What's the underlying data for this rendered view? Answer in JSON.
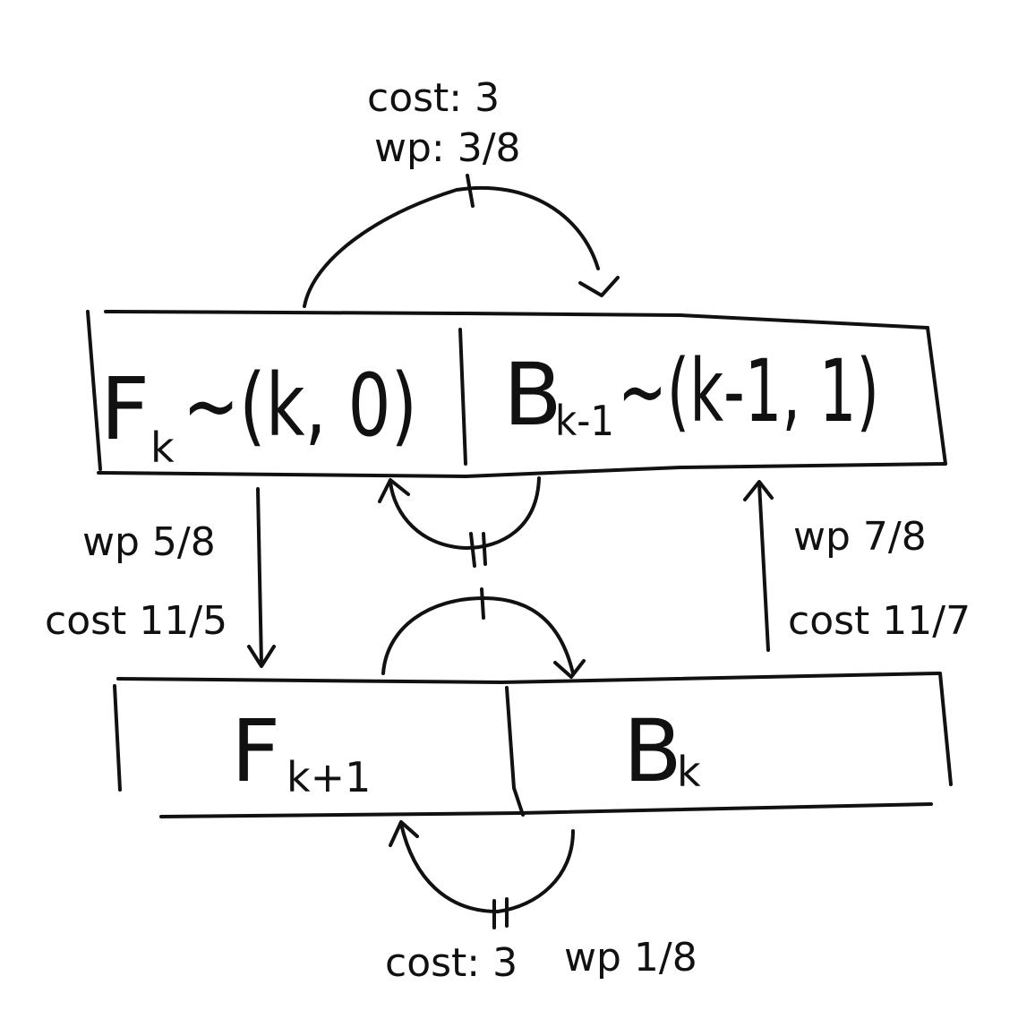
{
  "top_box": {
    "left_cell": {
      "name": "F",
      "subscript": "k",
      "rest": "~(k, 0)"
    },
    "right_cell": {
      "name": "B",
      "subscript": "k-1",
      "rest": "~(k-1, 1)"
    }
  },
  "bottom_box": {
    "left_cell": {
      "name": "F",
      "subscript": "k+1"
    },
    "right_cell": {
      "name": "B",
      "subscript": "k"
    }
  },
  "edges": {
    "top_loop": {
      "line1": "cost: 3",
      "line2": "wp: 3/8"
    },
    "left_down": {
      "line1": "wp 5/8",
      "line2": "cost 11/5"
    },
    "right_up": {
      "line1": "wp 7/8",
      "line2": "cost 11/7"
    },
    "bottom_loop": {
      "cost": "cost: 3",
      "wp": "wp 1/8"
    }
  }
}
